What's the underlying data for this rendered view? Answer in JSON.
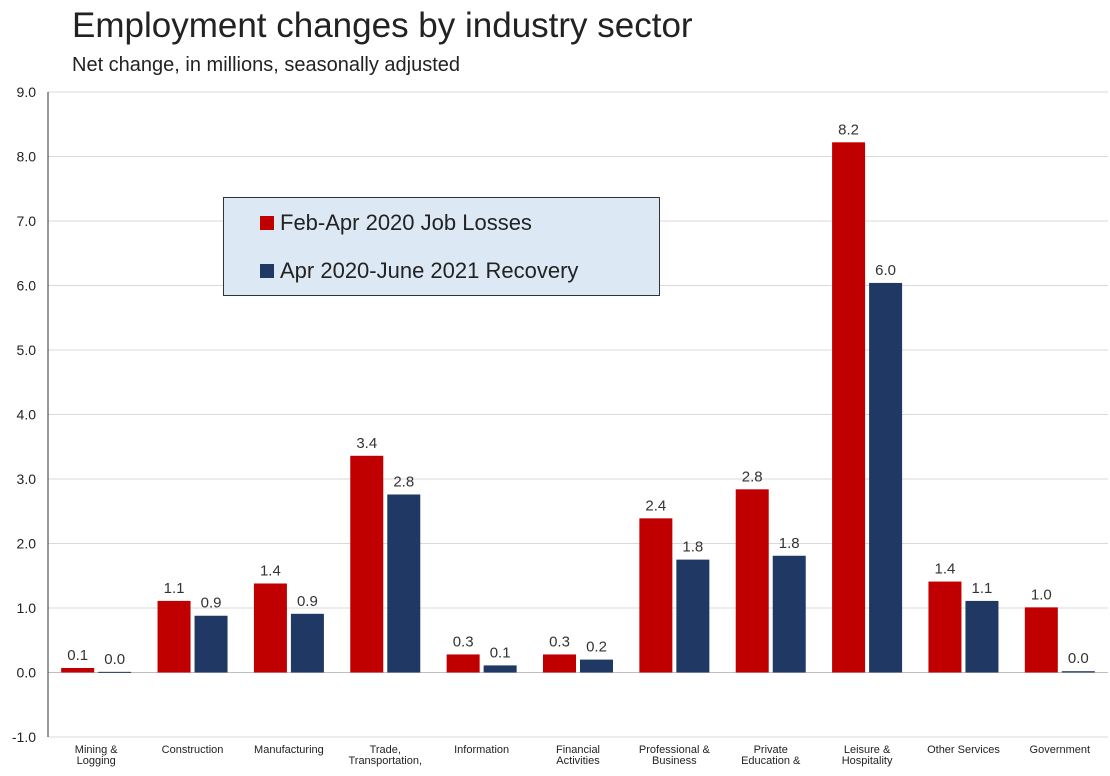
{
  "chart_data": {
    "type": "bar",
    "title": "Employment changes by industry sector",
    "subtitle": "Net change, in millions, seasonally adjusted",
    "categories": [
      "Mining & Logging",
      "Construction",
      "Manufacturing",
      "Trade, Transportation,",
      "Information",
      "Financial Activities",
      "Professional & Business",
      "Private Education &",
      "Leisure & Hospitality",
      "Other Services",
      "Government"
    ],
    "series": [
      {
        "name": "Feb-Apr 2020 Job Losses",
        "color": "#c00000",
        "values": [
          0.07,
          1.11,
          1.38,
          3.36,
          0.28,
          0.28,
          2.39,
          2.84,
          8.22,
          1.41,
          1.01
        ],
        "labels": [
          "0.1",
          "1.1",
          "1.4",
          "3.4",
          "0.3",
          "0.3",
          "2.4",
          "2.8",
          "8.2",
          "1.4",
          "1.0"
        ]
      },
      {
        "name": "Apr 2020-June 2021 Recovery",
        "color": "#1f3864",
        "values": [
          0.01,
          0.88,
          0.91,
          2.76,
          0.11,
          0.2,
          1.75,
          1.81,
          6.04,
          1.11,
          0.02
        ],
        "labels": [
          "0.0",
          "0.9",
          "0.9",
          "2.8",
          "0.1",
          "0.2",
          "1.8",
          "1.8",
          "6.0",
          "1.1",
          "0.0"
        ]
      }
    ],
    "ylim": [
      -1.0,
      9.0
    ],
    "yticks": [
      "-1.0",
      "0.0",
      "1.0",
      "2.0",
      "3.0",
      "4.0",
      "5.0",
      "6.0",
      "7.0",
      "8.0",
      "9.0"
    ],
    "grid": true,
    "legend": "upper-left"
  }
}
